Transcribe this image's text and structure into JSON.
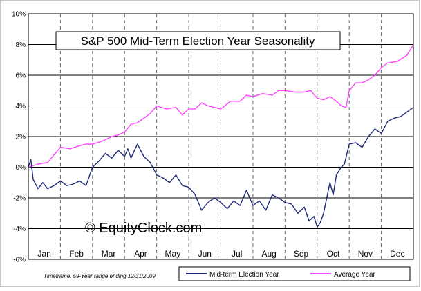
{
  "chart_data": {
    "type": "line",
    "title": "S&P 500 Mid-Term Election Year Seasonality",
    "watermark": "© EquityClock.com",
    "footnote": "Timeframe: 59-Year range ending 12/31/2009",
    "xlabel": "",
    "ylabel": "",
    "ylim": [
      -6,
      10
    ],
    "y_ticks": [
      "-6%",
      "-4%",
      "-2%",
      "0%",
      "2%",
      "4%",
      "6%",
      "8%",
      "10%"
    ],
    "x_ticks": [
      "Jan",
      "Feb",
      "Mar",
      "Apr",
      "May",
      "Jun",
      "Jul",
      "Aug",
      "Sep",
      "Oct",
      "Nov",
      "Dec"
    ],
    "xlim": [
      0,
      12
    ],
    "grid": {
      "horizontal": "solid",
      "vertical": "dashed"
    },
    "legend_position": "bottom-right",
    "series": [
      {
        "name": "Mid-term Election Year",
        "color": "#1f2a78",
        "x": [
          0.0,
          0.08,
          0.15,
          0.3,
          0.45,
          0.6,
          0.8,
          1.0,
          1.2,
          1.4,
          1.6,
          1.8,
          2.0,
          2.2,
          2.4,
          2.6,
          2.8,
          3.0,
          3.1,
          3.2,
          3.4,
          3.6,
          3.8,
          4.0,
          4.2,
          4.4,
          4.6,
          4.8,
          5.0,
          5.2,
          5.4,
          5.6,
          5.8,
          6.0,
          6.2,
          6.4,
          6.6,
          6.8,
          7.0,
          7.2,
          7.4,
          7.6,
          7.8,
          8.0,
          8.2,
          8.4,
          8.6,
          8.75,
          8.9,
          9.0,
          9.1,
          9.2,
          9.3,
          9.4,
          9.5,
          9.6,
          9.75,
          9.85,
          10.0,
          10.2,
          10.4,
          10.6,
          10.8,
          11.0,
          11.2,
          11.4,
          11.6,
          11.8,
          12.0
        ],
        "y": [
          0.0,
          0.5,
          -0.8,
          -1.4,
          -1.0,
          -1.4,
          -1.2,
          -0.9,
          -1.2,
          -1.1,
          -0.9,
          -1.2,
          0.0,
          0.4,
          0.9,
          0.6,
          1.1,
          0.7,
          1.2,
          0.6,
          1.5,
          0.7,
          0.3,
          -0.5,
          -0.7,
          -1.0,
          -0.5,
          -1.2,
          -1.3,
          -1.8,
          -2.8,
          -2.3,
          -2.0,
          -2.3,
          -2.7,
          -2.2,
          -2.5,
          -1.5,
          -2.5,
          -2.2,
          -2.8,
          -1.8,
          -2.0,
          -2.3,
          -2.4,
          -3.0,
          -2.6,
          -3.5,
          -3.2,
          -3.9,
          -3.6,
          -3.0,
          -2.0,
          -1.0,
          -1.8,
          -0.5,
          0.0,
          0.2,
          1.5,
          1.6,
          1.3,
          2.0,
          2.5,
          2.2,
          3.0,
          3.2,
          3.3,
          3.6,
          3.9
        ]
      },
      {
        "name": "Average Year",
        "color": "#ff44ff",
        "x": [
          0.0,
          0.3,
          0.6,
          0.8,
          1.0,
          1.3,
          1.6,
          1.8,
          2.0,
          2.3,
          2.6,
          2.8,
          3.0,
          3.2,
          3.4,
          3.6,
          3.8,
          4.0,
          4.3,
          4.6,
          4.8,
          5.0,
          5.2,
          5.4,
          5.6,
          5.8,
          6.0,
          6.3,
          6.6,
          6.8,
          7.0,
          7.3,
          7.6,
          7.8,
          8.0,
          8.3,
          8.6,
          8.8,
          9.0,
          9.2,
          9.4,
          9.6,
          9.75,
          9.9,
          10.0,
          10.2,
          10.4,
          10.6,
          10.8,
          11.0,
          11.2,
          11.5,
          11.8,
          12.0
        ],
        "y": [
          0.0,
          0.2,
          0.3,
          0.8,
          1.3,
          1.2,
          1.4,
          1.5,
          1.5,
          1.7,
          2.0,
          2.1,
          2.3,
          2.8,
          2.9,
          3.2,
          3.5,
          4.0,
          3.8,
          3.9,
          3.4,
          3.8,
          3.8,
          4.2,
          4.0,
          3.9,
          3.8,
          4.3,
          4.3,
          4.7,
          4.6,
          4.8,
          4.7,
          5.0,
          5.0,
          4.9,
          4.9,
          5.0,
          4.5,
          4.4,
          4.6,
          4.3,
          4.0,
          3.9,
          5.0,
          5.5,
          5.5,
          5.7,
          6.0,
          6.5,
          6.8,
          6.9,
          7.3,
          8.0
        ]
      }
    ]
  }
}
